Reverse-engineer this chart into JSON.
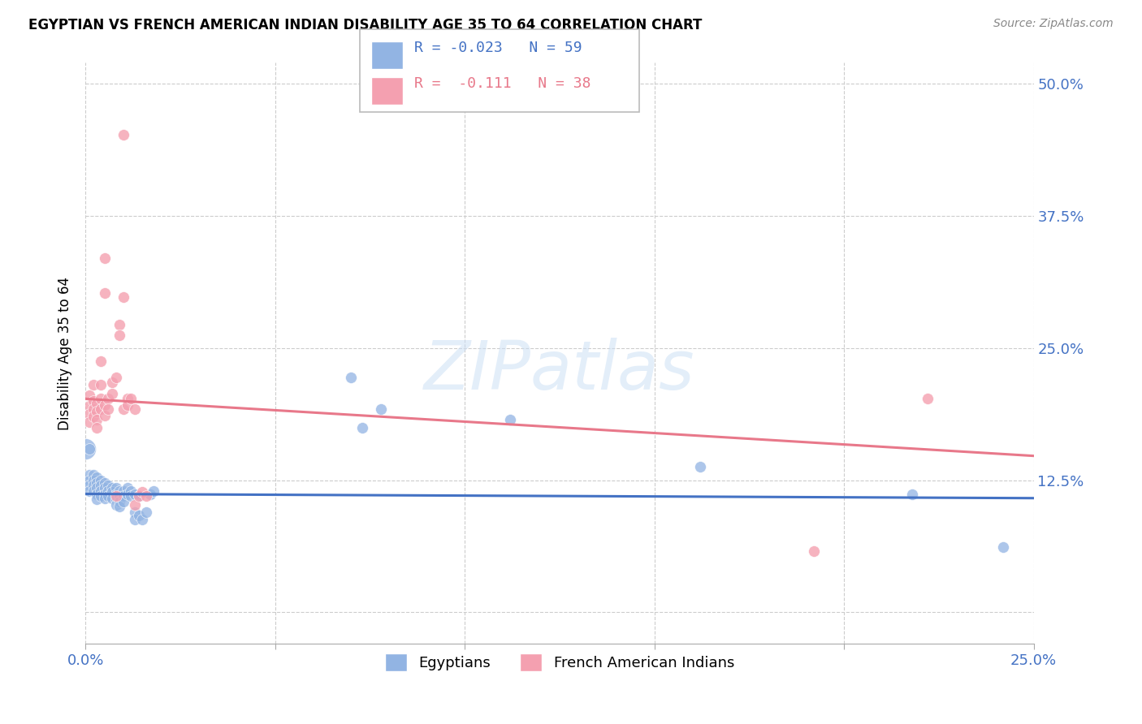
{
  "title": "EGYPTIAN VS FRENCH AMERICAN INDIAN DISABILITY AGE 35 TO 64 CORRELATION CHART",
  "source": "Source: ZipAtlas.com",
  "ylabel": "Disability Age 35 to 64",
  "xlim": [
    0.0,
    0.25
  ],
  "ylim": [
    -0.03,
    0.52
  ],
  "xtick_positions": [
    0.0,
    0.05,
    0.1,
    0.15,
    0.2,
    0.25
  ],
  "xtick_labels": [
    "0.0%",
    "",
    "",
    "",
    "",
    "25.0%"
  ],
  "ytick_positions": [
    0.0,
    0.125,
    0.25,
    0.375,
    0.5
  ],
  "ytick_labels": [
    "",
    "12.5%",
    "25.0%",
    "37.5%",
    "50.0%"
  ],
  "blue_color": "#92b4e3",
  "pink_color": "#f4a0b0",
  "line_blue": "#4472c4",
  "line_pink": "#e8788a",
  "watermark": "ZIPatlas",
  "blue_scatter": [
    [
      0.001,
      0.155
    ],
    [
      0.001,
      0.13
    ],
    [
      0.001,
      0.125
    ],
    [
      0.001,
      0.12
    ],
    [
      0.001,
      0.115
    ],
    [
      0.002,
      0.13
    ],
    [
      0.002,
      0.125
    ],
    [
      0.002,
      0.12
    ],
    [
      0.002,
      0.115
    ],
    [
      0.003,
      0.128
    ],
    [
      0.003,
      0.122
    ],
    [
      0.003,
      0.118
    ],
    [
      0.003,
      0.112
    ],
    [
      0.003,
      0.107
    ],
    [
      0.004,
      0.125
    ],
    [
      0.004,
      0.12
    ],
    [
      0.004,
      0.115
    ],
    [
      0.004,
      0.11
    ],
    [
      0.005,
      0.122
    ],
    [
      0.005,
      0.118
    ],
    [
      0.005,
      0.112
    ],
    [
      0.005,
      0.108
    ],
    [
      0.006,
      0.12
    ],
    [
      0.006,
      0.115
    ],
    [
      0.006,
      0.11
    ],
    [
      0.007,
      0.118
    ],
    [
      0.007,
      0.114
    ],
    [
      0.007,
      0.108
    ],
    [
      0.008,
      0.118
    ],
    [
      0.008,
      0.112
    ],
    [
      0.008,
      0.107
    ],
    [
      0.008,
      0.102
    ],
    [
      0.009,
      0.115
    ],
    [
      0.009,
      0.11
    ],
    [
      0.009,
      0.105
    ],
    [
      0.009,
      0.1
    ],
    [
      0.01,
      0.115
    ],
    [
      0.01,
      0.11
    ],
    [
      0.01,
      0.105
    ],
    [
      0.011,
      0.118
    ],
    [
      0.011,
      0.112
    ],
    [
      0.012,
      0.115
    ],
    [
      0.012,
      0.11
    ],
    [
      0.013,
      0.112
    ],
    [
      0.013,
      0.095
    ],
    [
      0.013,
      0.088
    ],
    [
      0.014,
      0.11
    ],
    [
      0.014,
      0.092
    ],
    [
      0.015,
      0.088
    ],
    [
      0.016,
      0.095
    ],
    [
      0.017,
      0.112
    ],
    [
      0.018,
      0.115
    ],
    [
      0.07,
      0.222
    ],
    [
      0.073,
      0.175
    ],
    [
      0.078,
      0.192
    ],
    [
      0.112,
      0.182
    ],
    [
      0.162,
      0.138
    ],
    [
      0.218,
      0.112
    ],
    [
      0.242,
      0.062
    ]
  ],
  "pink_scatter": [
    [
      0.001,
      0.205
    ],
    [
      0.001,
      0.195
    ],
    [
      0.001,
      0.188
    ],
    [
      0.001,
      0.18
    ],
    [
      0.002,
      0.215
    ],
    [
      0.002,
      0.2
    ],
    [
      0.002,
      0.192
    ],
    [
      0.002,
      0.185
    ],
    [
      0.003,
      0.198
    ],
    [
      0.003,
      0.19
    ],
    [
      0.003,
      0.182
    ],
    [
      0.003,
      0.175
    ],
    [
      0.004,
      0.238
    ],
    [
      0.004,
      0.215
    ],
    [
      0.004,
      0.202
    ],
    [
      0.004,
      0.192
    ],
    [
      0.005,
      0.335
    ],
    [
      0.005,
      0.302
    ],
    [
      0.005,
      0.196
    ],
    [
      0.005,
      0.186
    ],
    [
      0.006,
      0.202
    ],
    [
      0.006,
      0.192
    ],
    [
      0.007,
      0.218
    ],
    [
      0.007,
      0.207
    ],
    [
      0.008,
      0.222
    ],
    [
      0.008,
      0.11
    ],
    [
      0.009,
      0.272
    ],
    [
      0.009,
      0.262
    ],
    [
      0.01,
      0.452
    ],
    [
      0.01,
      0.298
    ],
    [
      0.01,
      0.192
    ],
    [
      0.011,
      0.202
    ],
    [
      0.011,
      0.196
    ],
    [
      0.012,
      0.202
    ],
    [
      0.013,
      0.192
    ],
    [
      0.013,
      0.102
    ],
    [
      0.014,
      0.11
    ],
    [
      0.015,
      0.114
    ],
    [
      0.016,
      0.11
    ],
    [
      0.222,
      0.202
    ],
    [
      0.192,
      0.058
    ]
  ],
  "blue_line_x": [
    0.0,
    0.25
  ],
  "blue_line_y": [
    0.112,
    0.108
  ],
  "pink_line_x": [
    0.0,
    0.25
  ],
  "pink_line_y": [
    0.202,
    0.148
  ]
}
